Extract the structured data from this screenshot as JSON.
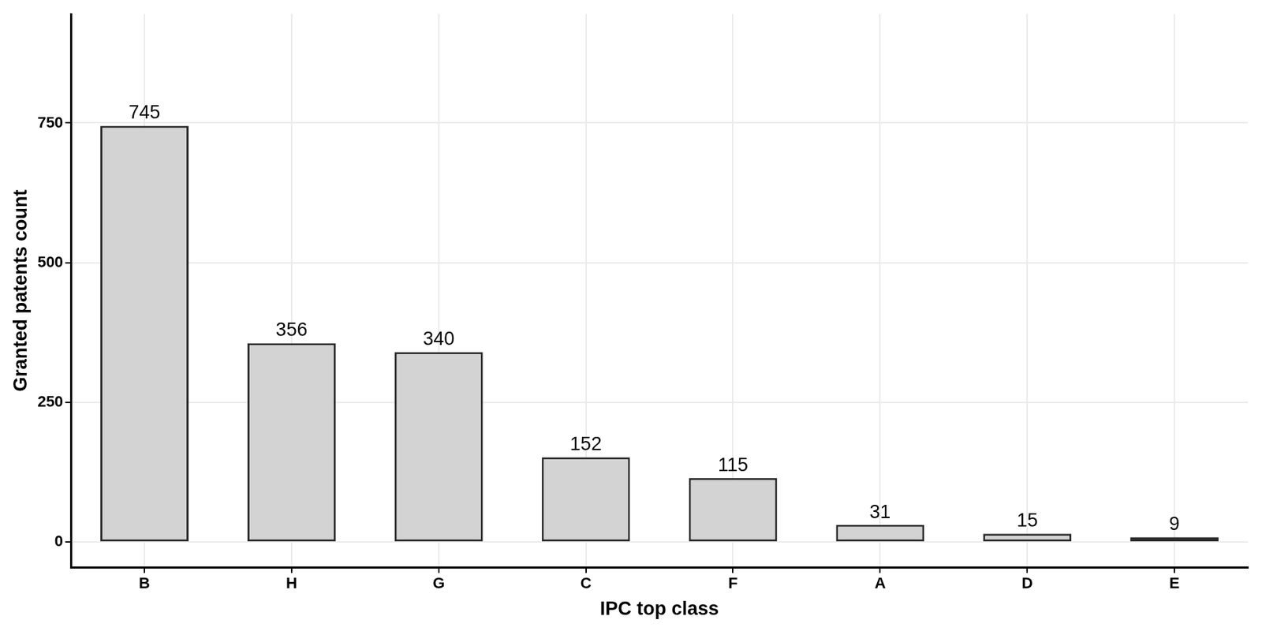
{
  "chart_data": {
    "type": "bar",
    "x_label": "IPC top class",
    "y_label": "Granted patents count",
    "categories": [
      "B",
      "H",
      "G",
      "C",
      "F",
      "A",
      "D",
      "E"
    ],
    "values": [
      745,
      356,
      340,
      152,
      115,
      31,
      15,
      9
    ],
    "color": "#d3d3d3",
    "ylim": [
      -45,
      945
    ],
    "yticks": [
      0,
      250,
      500,
      750
    ],
    "grid": true,
    "data_labels": true
  }
}
